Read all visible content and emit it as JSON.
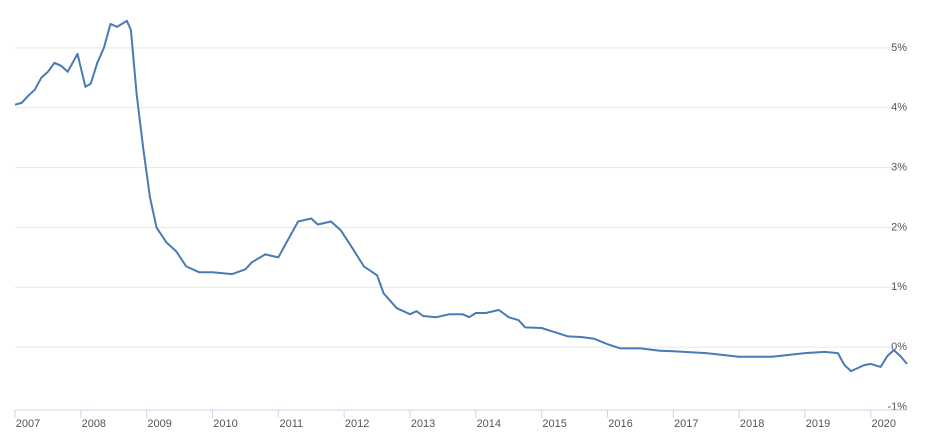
{
  "chart_data": {
    "type": "line",
    "x": [
      2007.0,
      2007.1,
      2007.2,
      2007.3,
      2007.4,
      2007.5,
      2007.6,
      2007.7,
      2007.8,
      2007.95,
      2008.07,
      2008.15,
      2008.25,
      2008.35,
      2008.45,
      2008.55,
      2008.7,
      2008.76,
      2008.85,
      2008.95,
      2009.05,
      2009.15,
      2009.3,
      2009.45,
      2009.6,
      2009.8,
      2010.0,
      2010.3,
      2010.5,
      2010.6,
      2010.8,
      2011.0,
      2011.15,
      2011.3,
      2011.5,
      2011.6,
      2011.8,
      2011.95,
      2012.1,
      2012.3,
      2012.5,
      2012.6,
      2012.8,
      2013.0,
      2013.1,
      2013.2,
      2013.4,
      2013.6,
      2013.8,
      2013.9,
      2014.0,
      2014.15,
      2014.35,
      2014.5,
      2014.65,
      2014.75,
      2015.0,
      2015.2,
      2015.4,
      2015.6,
      2015.8,
      2016.0,
      2016.2,
      2016.5,
      2016.8,
      2017.0,
      2017.5,
      2018.0,
      2018.5,
      2019.0,
      2019.3,
      2019.5,
      2019.6,
      2019.7,
      2019.8,
      2019.9,
      2020.0,
      2020.15,
      2020.25,
      2020.35,
      2020.45,
      2020.55
    ],
    "series": [
      {
        "color": "#4a7ab5",
        "values": [
          4.05,
          4.08,
          4.2,
          4.3,
          4.5,
          4.6,
          4.75,
          4.7,
          4.6,
          4.9,
          4.35,
          4.4,
          4.75,
          5.0,
          5.4,
          5.35,
          5.45,
          5.3,
          4.2,
          3.3,
          2.5,
          2.0,
          1.75,
          1.6,
          1.35,
          1.25,
          1.25,
          1.22,
          1.3,
          1.42,
          1.55,
          1.5,
          1.8,
          2.1,
          2.15,
          2.05,
          2.1,
          1.95,
          1.7,
          1.35,
          1.2,
          0.9,
          0.65,
          0.55,
          0.6,
          0.52,
          0.5,
          0.55,
          0.55,
          0.5,
          0.57,
          0.57,
          0.62,
          0.5,
          0.45,
          0.33,
          0.32,
          0.25,
          0.18,
          0.17,
          0.14,
          0.05,
          -0.02,
          -0.02,
          -0.06,
          -0.07,
          -0.1,
          -0.16,
          -0.16,
          -0.1,
          -0.08,
          -0.1,
          -0.3,
          -0.4,
          -0.35,
          -0.3,
          -0.28,
          -0.33,
          -0.15,
          -0.05,
          -0.15,
          -0.28
        ]
      }
    ],
    "xlim": [
      2007.0,
      2020.55
    ],
    "xticks": [
      2007,
      2008,
      2009,
      2010,
      2011,
      2012,
      2013,
      2014,
      2015,
      2016,
      2017,
      2018,
      2019,
      2020
    ],
    "ylim": [
      -1.05,
      5.8
    ],
    "yticks": [
      {
        "value": -1,
        "label": "-1%"
      },
      {
        "value": 0,
        "label": "0%"
      },
      {
        "value": 1,
        "label": "1%"
      },
      {
        "value": 2,
        "label": "2%"
      },
      {
        "value": 3,
        "label": "3%"
      },
      {
        "value": 4,
        "label": "4%"
      },
      {
        "value": 5,
        "label": "5%"
      }
    ],
    "grid": true
  }
}
